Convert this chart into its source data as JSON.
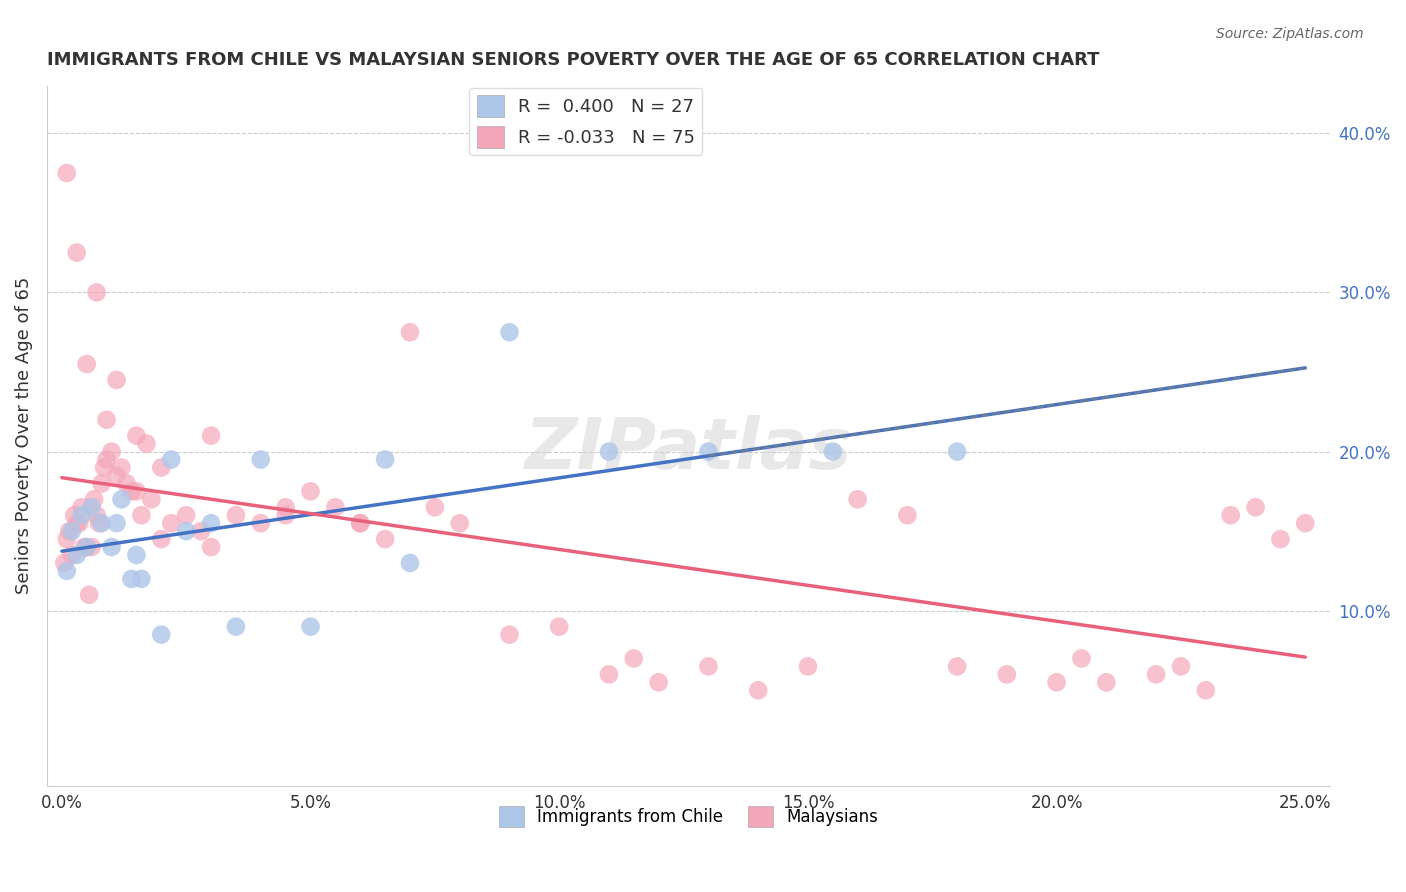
{
  "title": "IMMIGRANTS FROM CHILE VS MALAYSIAN SENIORS POVERTY OVER THE AGE OF 65 CORRELATION CHART",
  "source": "Source: ZipAtlas.com",
  "ylabel": "Seniors Poverty Over the Age of 65",
  "xlabel_ticks": [
    "0.0%",
    "5.0%",
    "10.0%",
    "15.0%",
    "20.0%",
    "25.0%"
  ],
  "xlabel_vals": [
    0.0,
    5.0,
    10.0,
    15.0,
    20.0,
    25.0
  ],
  "ylabel_ticks_right": [
    "10.0%",
    "20.0%",
    "30.0%",
    "40.0%"
  ],
  "ylabel_vals_right": [
    10.0,
    20.0,
    30.0,
    40.0
  ],
  "legend1_label": "R =  0.400   N = 27",
  "legend2_label": "R = -0.033   N = 75",
  "legend1_color": "#aec6e8",
  "legend2_color": "#f4a7b9",
  "line1_color": "#4472c4",
  "line2_color": "#e8607a",
  "watermark": "ZIPatlas",
  "chile_x": [
    0.1,
    0.2,
    0.3,
    0.4,
    0.5,
    0.6,
    0.8,
    1.0,
    1.1,
    1.2,
    1.4,
    1.5,
    1.6,
    2.0,
    2.2,
    2.5,
    3.0,
    3.5,
    4.0,
    5.0,
    6.5,
    7.0,
    9.0,
    11.0,
    13.0,
    15.5,
    18.0
  ],
  "chile_y": [
    12.5,
    15.0,
    13.5,
    16.0,
    14.0,
    16.5,
    15.5,
    14.0,
    15.5,
    17.0,
    12.0,
    13.5,
    12.0,
    8.5,
    19.5,
    15.0,
    15.5,
    9.0,
    19.5,
    9.0,
    19.5,
    13.0,
    27.5,
    20.0,
    20.0,
    20.0,
    20.0
  ],
  "malay_x": [
    0.05,
    0.1,
    0.15,
    0.2,
    0.25,
    0.3,
    0.35,
    0.4,
    0.45,
    0.5,
    0.55,
    0.6,
    0.65,
    0.7,
    0.75,
    0.8,
    0.85,
    0.9,
    1.0,
    1.1,
    1.2,
    1.3,
    1.4,
    1.5,
    1.6,
    1.7,
    1.8,
    2.0,
    2.2,
    2.5,
    2.8,
    3.0,
    3.5,
    4.0,
    4.5,
    5.0,
    5.5,
    6.0,
    6.5,
    7.0,
    7.5,
    8.0,
    9.0,
    10.0,
    11.0,
    11.5,
    12.0,
    13.0,
    14.0,
    15.0,
    16.0,
    17.0,
    18.0,
    19.0,
    20.0,
    20.5,
    21.0,
    22.0,
    22.5,
    23.0,
    23.5,
    24.0,
    24.5,
    25.0,
    0.1,
    0.3,
    0.5,
    0.7,
    0.9,
    1.1,
    1.5,
    2.0,
    3.0,
    4.5,
    6.0
  ],
  "malay_y": [
    13.0,
    14.5,
    15.0,
    13.5,
    16.0,
    15.5,
    15.5,
    16.5,
    14.0,
    14.0,
    11.0,
    14.0,
    17.0,
    16.0,
    15.5,
    18.0,
    19.0,
    19.5,
    20.0,
    18.5,
    19.0,
    18.0,
    17.5,
    17.5,
    16.0,
    20.5,
    17.0,
    14.5,
    15.5,
    16.0,
    15.0,
    14.0,
    16.0,
    15.5,
    16.5,
    17.5,
    16.5,
    15.5,
    14.5,
    27.5,
    16.5,
    15.5,
    8.5,
    9.0,
    6.0,
    7.0,
    5.5,
    6.5,
    5.0,
    6.5,
    17.0,
    16.0,
    6.5,
    6.0,
    5.5,
    7.0,
    5.5,
    6.0,
    6.5,
    5.0,
    16.0,
    16.5,
    14.5,
    15.5,
    37.5,
    32.5,
    25.5,
    30.0,
    22.0,
    24.5,
    21.0,
    19.0,
    21.0,
    16.0,
    15.5
  ]
}
